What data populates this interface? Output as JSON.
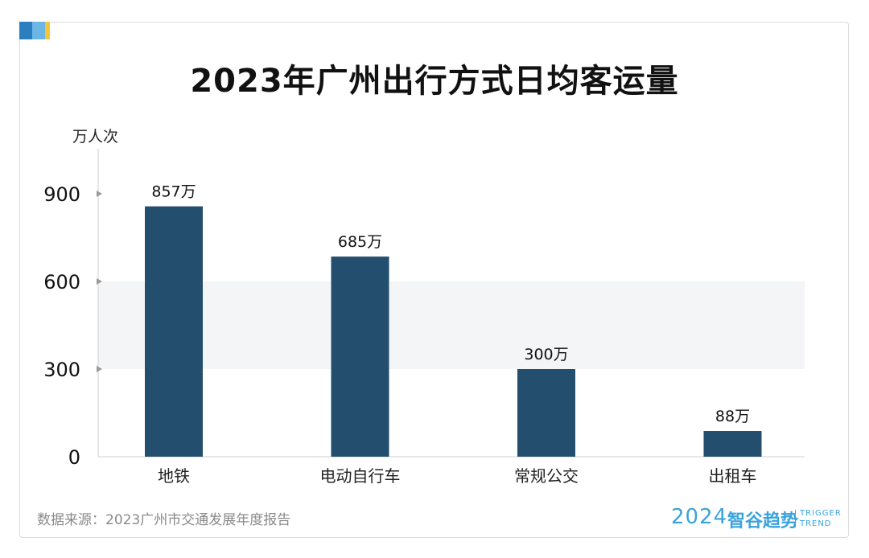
{
  "title": "2023年广州出行方式日均客运量",
  "unit": "万人次",
  "source": "数据来源：2023广州市交通发展年度报告",
  "brand": {
    "year": "2024",
    "name": "智谷趋势",
    "en_line1": "TRIGGER",
    "en_line2": "TREND"
  },
  "colors": {
    "bar": "#234e6e",
    "band": "#f4f5f7",
    "accent_blue": "#2b7fc0",
    "accent_light": "#6cb6e6",
    "accent_yellow": "#f2c53a"
  },
  "chart_data": {
    "type": "bar",
    "categories": [
      "地铁",
      "电动自行车",
      "常规公交",
      "出租车"
    ],
    "values": [
      857,
      685,
      300,
      88
    ],
    "data_labels": [
      "857万",
      "685万",
      "300万",
      "88万"
    ],
    "ylabel": "万人次",
    "ylim": [
      0,
      1000
    ],
    "yticks": [
      0,
      300,
      600,
      900
    ],
    "highlight_band": [
      300,
      600
    ],
    "grid": false
  }
}
